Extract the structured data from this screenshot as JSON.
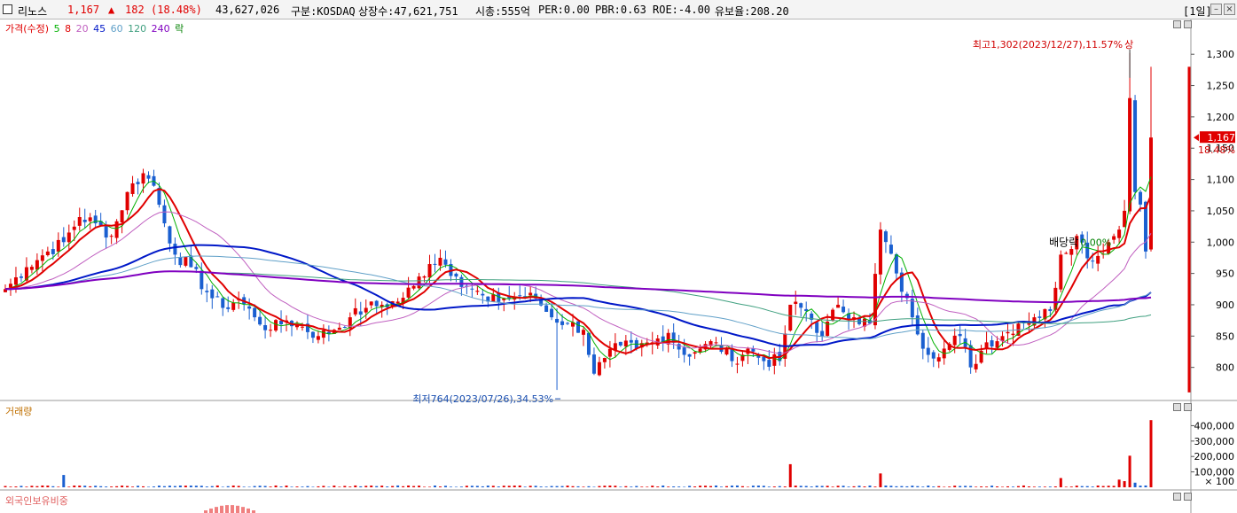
{
  "header": {
    "stock_name": "리노스",
    "price": "1,167",
    "change_arrow": "▲",
    "change": "182",
    "change_pct": "(18.48%)",
    "volume": "43,627,026",
    "market": "구분:KOSDAQ",
    "shares": "상장수:47,621,751",
    "market_cap": "시총:555억",
    "per": "PER:0.00",
    "pbr": "PBR:0.63",
    "roe": "ROE:-4.00",
    "reserve": "유보율:208.20",
    "period": "[1일]"
  },
  "legend": {
    "price_label": "가격(수정)",
    "ma5": "5",
    "ma8": "8",
    "ma20": "20",
    "ma45": "45",
    "ma60": "60",
    "ma120": "120",
    "ma240": "240",
    "event": "락"
  },
  "panels": {
    "volume_label": "거래량",
    "foreign_label": "외국인보유비중"
  },
  "annotations": {
    "high": "최고1,302(2023/12/27),11.57%",
    "high_tag": "상",
    "low": "최저764(2023/07/26),34.53%",
    "dividend": "배당락",
    "dividend_value": "0.00%",
    "last_price": "1,167",
    "last_pct": "18.48%"
  },
  "colors": {
    "up": "#e00000",
    "down": "#1a5fd0",
    "ma5": "#00b000",
    "ma8": "#e00000",
    "ma20": "#c060c0",
    "ma45": "#0018c8",
    "ma60": "#60a0c8",
    "ma120": "#40a080",
    "ma240": "#8000c0"
  },
  "chart_data": [
    {
      "type": "candlestick",
      "title": "",
      "ylim": [
        750,
        1330
      ],
      "y_ticks": [
        800,
        850,
        900,
        950,
        1000,
        1050,
        1100,
        1150,
        1200,
        1250,
        1300
      ],
      "y_tick_labels": [
        "800",
        "850",
        "900",
        "950",
        "1,000",
        "1,050",
        "1,100",
        "1,150",
        "1,200",
        "1,250",
        "1,300"
      ],
      "high_value": 1302,
      "low_value": 764,
      "last_close": 1167,
      "anchors": [
        {
          "i": 0,
          "c": 925
        },
        {
          "i": 4,
          "c": 960
        },
        {
          "i": 8,
          "c": 985
        },
        {
          "i": 11,
          "c": 1000
        },
        {
          "i": 14,
          "c": 1040
        },
        {
          "i": 17,
          "c": 1030
        },
        {
          "i": 20,
          "c": 1010
        },
        {
          "i": 23,
          "c": 1080
        },
        {
          "i": 26,
          "c": 1110
        },
        {
          "i": 28,
          "c": 1090
        },
        {
          "i": 30,
          "c": 1030
        },
        {
          "i": 32,
          "c": 980
        },
        {
          "i": 35,
          "c": 960
        },
        {
          "i": 38,
          "c": 920
        },
        {
          "i": 41,
          "c": 895
        },
        {
          "i": 44,
          "c": 910
        },
        {
          "i": 47,
          "c": 880
        },
        {
          "i": 50,
          "c": 860
        },
        {
          "i": 53,
          "c": 875
        },
        {
          "i": 56,
          "c": 865
        },
        {
          "i": 59,
          "c": 850
        },
        {
          "i": 62,
          "c": 860
        },
        {
          "i": 65,
          "c": 880
        },
        {
          "i": 68,
          "c": 895
        },
        {
          "i": 71,
          "c": 900
        },
        {
          "i": 74,
          "c": 905
        },
        {
          "i": 77,
          "c": 930
        },
        {
          "i": 80,
          "c": 965
        },
        {
          "i": 82,
          "c": 975
        },
        {
          "i": 85,
          "c": 945
        },
        {
          "i": 88,
          "c": 925
        },
        {
          "i": 91,
          "c": 905
        },
        {
          "i": 94,
          "c": 910
        },
        {
          "i": 97,
          "c": 915
        },
        {
          "i": 100,
          "c": 910
        },
        {
          "i": 103,
          "c": 880
        },
        {
          "i": 106,
          "c": 870
        },
        {
          "i": 109,
          "c": 860
        },
        {
          "i": 111,
          "c": 790
        },
        {
          "i": 113,
          "c": 815
        },
        {
          "i": 116,
          "c": 835
        },
        {
          "i": 119,
          "c": 830
        },
        {
          "i": 122,
          "c": 840
        },
        {
          "i": 125,
          "c": 855
        },
        {
          "i": 128,
          "c": 820
        },
        {
          "i": 131,
          "c": 830
        },
        {
          "i": 134,
          "c": 840
        },
        {
          "i": 137,
          "c": 810
        },
        {
          "i": 140,
          "c": 830
        },
        {
          "i": 143,
          "c": 810
        },
        {
          "i": 146,
          "c": 810
        },
        {
          "i": 148,
          "c": 900
        },
        {
          "i": 151,
          "c": 890
        },
        {
          "i": 154,
          "c": 850
        },
        {
          "i": 157,
          "c": 900
        },
        {
          "i": 160,
          "c": 880
        },
        {
          "i": 163,
          "c": 870
        },
        {
          "i": 165,
          "c": 1020
        },
        {
          "i": 168,
          "c": 950
        },
        {
          "i": 171,
          "c": 880
        },
        {
          "i": 174,
          "c": 820
        },
        {
          "i": 177,
          "c": 830
        },
        {
          "i": 180,
          "c": 850
        },
        {
          "i": 182,
          "c": 800
        },
        {
          "i": 185,
          "c": 840
        },
        {
          "i": 188,
          "c": 850
        },
        {
          "i": 191,
          "c": 870
        },
        {
          "i": 194,
          "c": 880
        },
        {
          "i": 197,
          "c": 890
        },
        {
          "i": 199,
          "c": 980
        },
        {
          "i": 202,
          "c": 1010
        },
        {
          "i": 205,
          "c": 970
        },
        {
          "i": 208,
          "c": 1000
        },
        {
          "i": 210,
          "c": 1020
        },
        {
          "i": 211,
          "c": 1050
        },
        {
          "i": 212,
          "c": 1230
        },
        {
          "i": 213,
          "c": 1080
        },
        {
          "i": 214,
          "c": 1060
        },
        {
          "i": 215,
          "c": 985
        },
        {
          "i": 216,
          "c": 1167
        }
      ],
      "count": 217,
      "volume": {
        "ylim": [
          0,
          460000
        ],
        "y_ticks": [
          100000,
          200000,
          300000,
          400000
        ],
        "y_tick_labels": [
          "100,000",
          "200,000",
          "300,000",
          "400,000"
        ],
        "unit_label": "× 100",
        "spikes": [
          {
            "i": 11,
            "v": 80000
          },
          {
            "i": 148,
            "v": 150000
          },
          {
            "i": 165,
            "v": 90000
          },
          {
            "i": 199,
            "v": 60000
          },
          {
            "i": 210,
            "v": 50000
          },
          {
            "i": 211,
            "v": 40000
          },
          {
            "i": 212,
            "v": 205000
          },
          {
            "i": 213,
            "v": 30000
          },
          {
            "i": 216,
            "v": 436000
          }
        ]
      },
      "ma_lines": [
        {
          "name": "5",
          "period": 5,
          "color": "#00b000",
          "width": 1
        },
        {
          "name": "8",
          "period": 8,
          "color": "#e00000",
          "width": 2
        },
        {
          "name": "20",
          "period": 20,
          "color": "#c060c0",
          "width": 1
        },
        {
          "name": "45",
          "period": 45,
          "color": "#0018c8",
          "width": 2
        },
        {
          "name": "60",
          "period": 60,
          "color": "#60a0c8",
          "width": 1
        },
        {
          "name": "120",
          "period": 120,
          "color": "#40a080",
          "width": 1
        },
        {
          "name": "240",
          "period": 240,
          "color": "#8000c0",
          "width": 2
        }
      ]
    }
  ]
}
